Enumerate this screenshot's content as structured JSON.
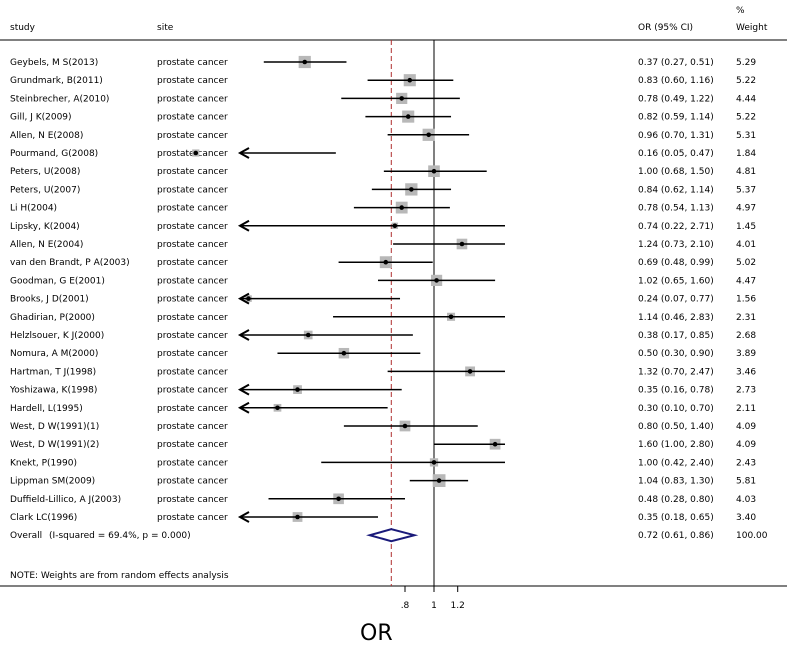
{
  "headers": {
    "study": "study",
    "site": "site",
    "or": "OR (95% CI)",
    "pct": "%",
    "weight": "Weight"
  },
  "note": "NOTE: Weights are from random effects analysis",
  "chart_data": {
    "type": "forest",
    "title": "",
    "xlabel": "OR",
    "x_ticks": [
      ".8",
      "1",
      "1.2"
    ],
    "x_tick_values": [
      0.8,
      1.0,
      1.2
    ],
    "null_line": 1.0,
    "overall_line": 0.72,
    "rows": [
      {
        "study": "Geybels, M S(2013)",
        "site": "prostate cancer",
        "or": 0.37,
        "lo": 0.27,
        "hi": 0.51,
        "ci": "0.37 (0.27, 0.51)",
        "weight": "5.29"
      },
      {
        "study": "Grundmark, B(2011)",
        "site": "prostate cancer",
        "or": 0.83,
        "lo": 0.6,
        "hi": 1.16,
        "ci": "0.83 (0.60, 1.16)",
        "weight": "5.22"
      },
      {
        "study": "Steinbrecher, A(2010)",
        "site": "prostate cancer",
        "or": 0.78,
        "lo": 0.49,
        "hi": 1.22,
        "ci": "0.78 (0.49, 1.22)",
        "weight": "4.44"
      },
      {
        "study": "Gill, J K(2009)",
        "site": "prostate cancer",
        "or": 0.82,
        "lo": 0.59,
        "hi": 1.14,
        "ci": "0.82 (0.59, 1.14)",
        "weight": "5.22"
      },
      {
        "study": "Allen, N E(2008)",
        "site": "prostate cancer",
        "or": 0.96,
        "lo": 0.7,
        "hi": 1.31,
        "ci": "0.96 (0.70, 1.31)",
        "weight": "5.31"
      },
      {
        "study": "Pourmand, G(2008)",
        "site": "prostate cancer",
        "or": 0.16,
        "lo": 0.05,
        "hi": 0.47,
        "ci": "0.16 (0.05, 0.47)",
        "weight": "1.84"
      },
      {
        "study": "Peters, U(2008)",
        "site": "prostate cancer",
        "or": 1.0,
        "lo": 0.68,
        "hi": 1.5,
        "ci": "1.00 (0.68, 1.50)",
        "weight": "4.81"
      },
      {
        "study": "Peters, U(2007)",
        "site": "prostate cancer",
        "or": 0.84,
        "lo": 0.62,
        "hi": 1.14,
        "ci": "0.84 (0.62, 1.14)",
        "weight": "5.37"
      },
      {
        "study": "Li H(2004)",
        "site": "prostate cancer",
        "or": 0.78,
        "lo": 0.54,
        "hi": 1.13,
        "ci": "0.78 (0.54, 1.13)",
        "weight": "4.97"
      },
      {
        "study": "Lipsky, K(2004)",
        "site": "prostate cancer",
        "or": 0.74,
        "lo": 0.22,
        "hi": 2.71,
        "ci": "0.74 (0.22, 2.71)",
        "weight": "1.45"
      },
      {
        "study": "Allen, N E(2004)",
        "site": "prostate cancer",
        "or": 1.24,
        "lo": 0.73,
        "hi": 2.1,
        "ci": "1.24 (0.73, 2.10)",
        "weight": "4.01"
      },
      {
        "study": "van den Brandt, P A(2003)",
        "site": "prostate cancer",
        "or": 0.69,
        "lo": 0.48,
        "hi": 0.99,
        "ci": "0.69 (0.48, 0.99)",
        "weight": "5.02"
      },
      {
        "study": "Goodman, G E(2001)",
        "site": "prostate cancer",
        "or": 1.02,
        "lo": 0.65,
        "hi": 1.6,
        "ci": "1.02 (0.65, 1.60)",
        "weight": "4.47"
      },
      {
        "study": "Brooks, J D(2001)",
        "site": "prostate cancer",
        "or": 0.24,
        "lo": 0.07,
        "hi": 0.77,
        "ci": "0.24 (0.07, 0.77)",
        "weight": "1.56"
      },
      {
        "study": "Ghadirian, P(2000)",
        "site": "prostate cancer",
        "or": 1.14,
        "lo": 0.46,
        "hi": 2.83,
        "ci": "1.14 (0.46, 2.83)",
        "weight": "2.31"
      },
      {
        "study": "Helzlsouer, K J(2000)",
        "site": "prostate cancer",
        "or": 0.38,
        "lo": 0.17,
        "hi": 0.85,
        "ci": "0.38 (0.17, 0.85)",
        "weight": "2.68"
      },
      {
        "study": "Nomura, A M(2000)",
        "site": "prostate cancer",
        "or": 0.5,
        "lo": 0.3,
        "hi": 0.9,
        "ci": "0.50 (0.30, 0.90)",
        "weight": "3.89"
      },
      {
        "study": "Hartman, T J(1998)",
        "site": "prostate cancer",
        "or": 1.32,
        "lo": 0.7,
        "hi": 2.47,
        "ci": "1.32 (0.70, 2.47)",
        "weight": "3.46"
      },
      {
        "study": "Yoshizawa, K(1998)",
        "site": "prostate cancer",
        "or": 0.35,
        "lo": 0.16,
        "hi": 0.78,
        "ci": "0.35 (0.16, 0.78)",
        "weight": "2.73"
      },
      {
        "study": "Hardell, L(1995)",
        "site": "prostate cancer",
        "or": 0.3,
        "lo": 0.1,
        "hi": 0.7,
        "ci": "0.30 (0.10, 0.70)",
        "weight": "2.11"
      },
      {
        "study": "West, D W(1991)(1)",
        "site": "prostate cancer",
        "or": 0.8,
        "lo": 0.5,
        "hi": 1.4,
        "ci": "0.80 (0.50, 1.40)",
        "weight": "4.09"
      },
      {
        "study": "West, D W(1991)(2)",
        "site": "prostate cancer",
        "or": 1.6,
        "lo": 1.0,
        "hi": 2.8,
        "ci": "1.60 (1.00, 2.80)",
        "weight": "4.09"
      },
      {
        "study": "Knekt, P(1990)",
        "site": "prostate cancer",
        "or": 1.0,
        "lo": 0.42,
        "hi": 2.4,
        "ci": "1.00 (0.42, 2.40)",
        "weight": "2.43"
      },
      {
        "study": "Lippman SM(2009)",
        "site": "prostate cancer",
        "or": 1.04,
        "lo": 0.83,
        "hi": 1.3,
        "ci": "1.04 (0.83, 1.30)",
        "weight": "5.81"
      },
      {
        "study": "Duffield-Lillico, A J(2003)",
        "site": "prostate cancer",
        "or": 0.48,
        "lo": 0.28,
        "hi": 0.8,
        "ci": "0.48 (0.28, 0.80)",
        "weight": "4.03"
      },
      {
        "study": "Clark LC(1996)",
        "site": "prostate cancer",
        "or": 0.35,
        "lo": 0.18,
        "hi": 0.65,
        "ci": "0.35 (0.18, 0.65)",
        "weight": "3.40"
      }
    ],
    "overall": {
      "label": "Overall",
      "detail": "(I-squared = 69.4%, p = 0.000)",
      "or": 0.72,
      "lo": 0.61,
      "hi": 0.86,
      "ci": "0.72 (0.61, 0.86)",
      "weight": "100.00"
    },
    "colors": {
      "box": "#b8b8b8",
      "ref_line": "#b03030",
      "diamond": "#1a1a7a",
      "line": "#000000"
    }
  }
}
